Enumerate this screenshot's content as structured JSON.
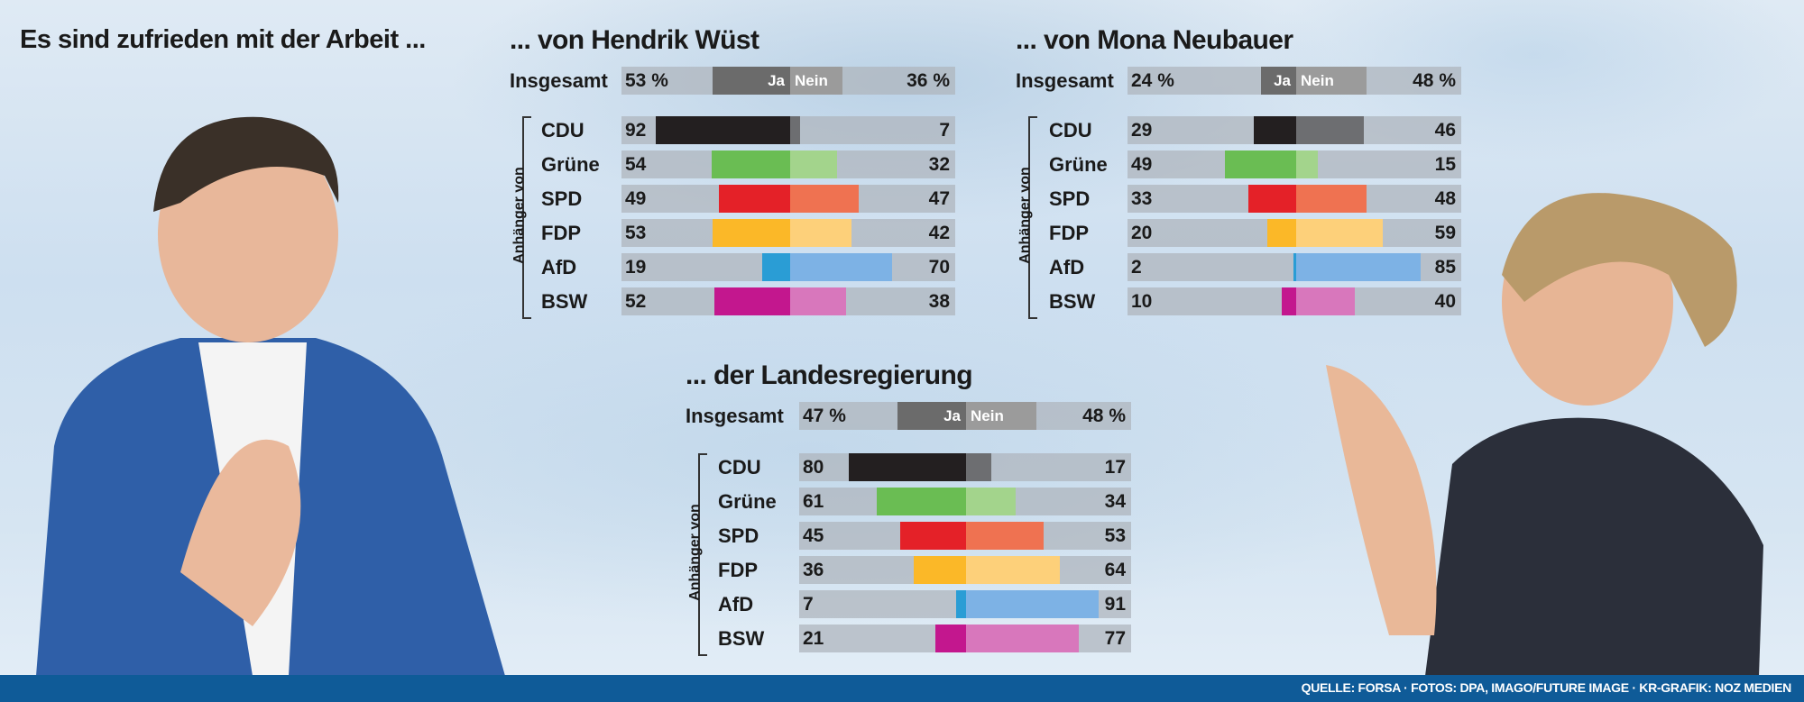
{
  "headline": "Es sind zufrieden mit der Arbeit ...",
  "footer": "QUELLE: FORSA · FOTOS: DPA, IMAGO/FUTURE IMAGE · KR-GRAFIK: NOZ MEDIEN",
  "legend": {
    "ja": "Ja",
    "nein": "Nein"
  },
  "group_label": "Anhänger von",
  "overall_label": "Insgesamt",
  "colors": {
    "CDU": [
      "#231f20",
      "#6d6e71"
    ],
    "Grüne": [
      "#6abd53",
      "#a3d48c"
    ],
    "SPD": [
      "#e42128",
      "#ef7251"
    ],
    "FDP": [
      "#fbb828",
      "#fdd07a"
    ],
    "AfD": [
      "#2a9dd5",
      "#7db2e5"
    ],
    "BSW": [
      "#c3178e",
      "#d877bc"
    ],
    "overall": [
      "#6b6b6b",
      "#9b9b9b"
    ]
  },
  "chart_data": [
    {
      "type": "bar",
      "title": "... von Hendrik Wüst",
      "overall": {
        "ja": 53,
        "nein": 36,
        "ja_label": "53 %",
        "nein_label": "36 %"
      },
      "categories": [
        "CDU",
        "Grüne",
        "SPD",
        "FDP",
        "AfD",
        "BSW"
      ],
      "series": [
        {
          "name": "Ja",
          "values": [
            92,
            54,
            49,
            53,
            19,
            52
          ]
        },
        {
          "name": "Nein",
          "values": [
            7,
            32,
            47,
            42,
            70,
            38
          ]
        }
      ]
    },
    {
      "type": "bar",
      "title": "... von Mona Neubauer",
      "overall": {
        "ja": 24,
        "nein": 48,
        "ja_label": "24 %",
        "nein_label": "48 %"
      },
      "categories": [
        "CDU",
        "Grüne",
        "SPD",
        "FDP",
        "AfD",
        "BSW"
      ],
      "series": [
        {
          "name": "Ja",
          "values": [
            29,
            49,
            33,
            20,
            2,
            10
          ]
        },
        {
          "name": "Nein",
          "values": [
            46,
            15,
            48,
            59,
            85,
            40
          ]
        }
      ]
    },
    {
      "type": "bar",
      "title": "... der Landesregierung",
      "overall": {
        "ja": 47,
        "nein": 48,
        "ja_label": "47 %",
        "nein_label": "48 %"
      },
      "categories": [
        "CDU",
        "Grüne",
        "SPD",
        "FDP",
        "AfD",
        "BSW"
      ],
      "series": [
        {
          "name": "Ja",
          "values": [
            80,
            61,
            45,
            36,
            7,
            21
          ]
        },
        {
          "name": "Nein",
          "values": [
            17,
            34,
            53,
            64,
            91,
            77
          ]
        }
      ]
    }
  ]
}
